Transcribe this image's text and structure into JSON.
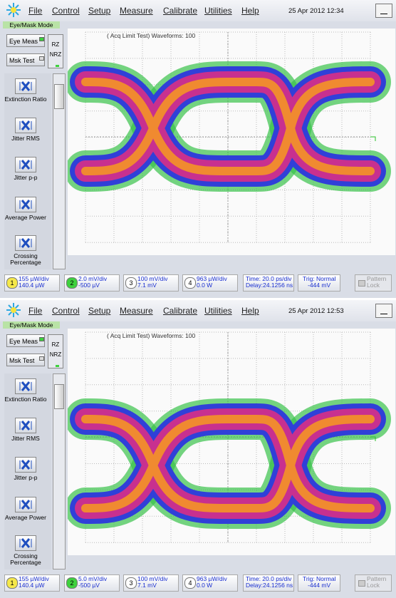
{
  "panels": [
    {
      "menu": [
        "File",
        "Control",
        "Setup",
        "Measure",
        "Calibrate",
        "Utilities",
        "Help"
      ],
      "datetime": "25 Apr 2012  12:34",
      "mode": "Eye/Mask Mode",
      "buttons": [
        "Eye Meas",
        "Msk Test"
      ],
      "format": [
        "RZ",
        "NRZ"
      ],
      "tools": [
        "Extinction Ratio",
        "Jitter RMS",
        "Jitter p-p",
        "Average Power",
        "Crossing Percentage"
      ],
      "caption": "( Acq Limit Test)  Waveforms: 100",
      "channels": [
        {
          "num": "1",
          "scale": "155 µW/div",
          "offset": "140.4 µW"
        },
        {
          "num": "2",
          "scale": "2.0 mV/div",
          "offset": "-500 µV"
        },
        {
          "num": "3",
          "scale": "100 mV/div",
          "offset": "7.1 mV"
        },
        {
          "num": "4",
          "scale": "963 µW/div",
          "offset": "0.0 W"
        }
      ],
      "time": "Time: 20.0 ps/div",
      "delay": "Delay:24.1256 ns",
      "trig": "Trig: Normal",
      "trig_level": "-444 mV",
      "pattern": "Pattern",
      "lock": "Lock"
    },
    {
      "menu": [
        "File",
        "Control",
        "Setup",
        "Measure",
        "Calibrate",
        "Utilities",
        "Help"
      ],
      "datetime": "25 Apr 2012  12:53",
      "mode": "Eye/Mask Mode",
      "buttons": [
        "Eye Meas",
        "Msk Test"
      ],
      "format": [
        "RZ",
        "NRZ"
      ],
      "tools": [
        "Extinction Ratio",
        "Jitter RMS",
        "Jitter p-p",
        "Average Power",
        "Crossing Percentage"
      ],
      "caption": "( Acq Limit Test)  Waveforms: 100",
      "channels": [
        {
          "num": "1",
          "scale": "155 µW/div",
          "offset": "140.4 µW"
        },
        {
          "num": "2",
          "scale": "5.0 mV/div",
          "offset": "-500 µV"
        },
        {
          "num": "3",
          "scale": "100 mV/div",
          "offset": "7.1 mV"
        },
        {
          "num": "4",
          "scale": "963 µW/div",
          "offset": "0.0 W"
        }
      ],
      "time": "Time: 20.0 ps/div",
      "delay": "Delay:24.1256 ns",
      "trig": "Trig: Normal",
      "trig_level": "-444 mV",
      "pattern": "Pattern",
      "lock": "Lock"
    }
  ]
}
